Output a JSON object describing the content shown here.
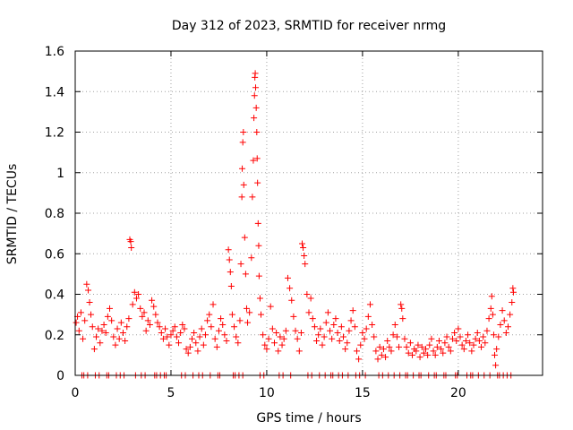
{
  "chart_data": {
    "type": "scatter",
    "title": "Day 312 of 2023, SRMTID for receiver nrmg",
    "xlabel": "GPS time / hours",
    "ylabel": "SRMTID / TECUs",
    "xlim": [
      0,
      24.4
    ],
    "ylim": [
      0,
      1.6
    ],
    "xticks": [
      0,
      5,
      10,
      15,
      20
    ],
    "xtick_labels": [
      "0",
      "5",
      "10",
      "15",
      "20"
    ],
    "yticks": [
      0,
      0.2,
      0.4,
      0.6,
      0.8,
      1.0,
      1.2,
      1.4,
      1.6
    ],
    "ytick_labels": [
      "0",
      "0.2",
      "0.4",
      "0.6",
      "0.8",
      "1",
      "1.2",
      "1.4",
      "1.6"
    ],
    "grid": true,
    "marker": "+",
    "marker_color": "#ff0000",
    "series": [
      {
        "name": "SRMTID",
        "points": [
          [
            0.05,
            0.26
          ],
          [
            0.12,
            0.29
          ],
          [
            0.2,
            0.22
          ],
          [
            0.3,
            0.31
          ],
          [
            0.4,
            0.18
          ],
          [
            0.5,
            0.27
          ],
          [
            0.6,
            0.45
          ],
          [
            0.68,
            0.42
          ],
          [
            0.75,
            0.36
          ],
          [
            0.82,
            0.3
          ],
          [
            0.9,
            0.24
          ],
          [
            1.0,
            0.13
          ],
          [
            1.1,
            0.19
          ],
          [
            1.2,
            0.23
          ],
          [
            1.3,
            0.16
          ],
          [
            1.4,
            0.22
          ],
          [
            1.5,
            0.25
          ],
          [
            1.6,
            0.21
          ],
          [
            1.7,
            0.29
          ],
          [
            1.8,
            0.33
          ],
          [
            1.9,
            0.27
          ],
          [
            2.0,
            0.19
          ],
          [
            2.1,
            0.15
          ],
          [
            2.2,
            0.23
          ],
          [
            2.3,
            0.18
          ],
          [
            2.4,
            0.26
          ],
          [
            2.5,
            0.21
          ],
          [
            2.6,
            0.17
          ],
          [
            2.7,
            0.24
          ],
          [
            2.8,
            0.28
          ],
          [
            2.85,
            0.67
          ],
          [
            2.9,
            0.66
          ],
          [
            2.93,
            0.63
          ],
          [
            3.0,
            0.35
          ],
          [
            3.1,
            0.41
          ],
          [
            3.2,
            0.38
          ],
          [
            3.3,
            0.4
          ],
          [
            3.4,
            0.33
          ],
          [
            3.5,
            0.29
          ],
          [
            3.6,
            0.31
          ],
          [
            3.7,
            0.22
          ],
          [
            3.8,
            0.27
          ],
          [
            3.9,
            0.25
          ],
          [
            4.0,
            0.37
          ],
          [
            4.1,
            0.34
          ],
          [
            4.2,
            0.3
          ],
          [
            4.3,
            0.26
          ],
          [
            4.4,
            0.24
          ],
          [
            4.5,
            0.21
          ],
          [
            4.6,
            0.18
          ],
          [
            4.7,
            0.23
          ],
          [
            4.8,
            0.19
          ],
          [
            4.9,
            0.15
          ],
          [
            5.0,
            0.2
          ],
          [
            5.1,
            0.22
          ],
          [
            5.2,
            0.24
          ],
          [
            5.3,
            0.19
          ],
          [
            5.4,
            0.16
          ],
          [
            5.5,
            0.21
          ],
          [
            5.6,
            0.25
          ],
          [
            5.7,
            0.23
          ],
          [
            5.8,
            0.13
          ],
          [
            5.9,
            0.11
          ],
          [
            6.0,
            0.14
          ],
          [
            6.1,
            0.18
          ],
          [
            6.2,
            0.21
          ],
          [
            6.3,
            0.16
          ],
          [
            6.4,
            0.12
          ],
          [
            6.5,
            0.19
          ],
          [
            6.6,
            0.23
          ],
          [
            6.7,
            0.15
          ],
          [
            6.8,
            0.2
          ],
          [
            6.9,
            0.27
          ],
          [
            7.0,
            0.3
          ],
          [
            7.1,
            0.24
          ],
          [
            7.2,
            0.35
          ],
          [
            7.3,
            0.18
          ],
          [
            7.4,
            0.14
          ],
          [
            7.5,
            0.22
          ],
          [
            7.6,
            0.28
          ],
          [
            7.7,
            0.25
          ],
          [
            7.8,
            0.2
          ],
          [
            7.9,
            0.17
          ],
          [
            8.0,
            0.62
          ],
          [
            8.05,
            0.57
          ],
          [
            8.1,
            0.51
          ],
          [
            8.15,
            0.44
          ],
          [
            8.2,
            0.3
          ],
          [
            8.3,
            0.24
          ],
          [
            8.4,
            0.19
          ],
          [
            8.5,
            0.16
          ],
          [
            8.6,
            0.27
          ],
          [
            8.65,
            0.55
          ],
          [
            8.7,
            0.88
          ],
          [
            8.72,
            1.02
          ],
          [
            8.75,
            1.15
          ],
          [
            8.78,
            1.2
          ],
          [
            8.8,
            0.94
          ],
          [
            8.85,
            0.68
          ],
          [
            8.9,
            0.5
          ],
          [
            8.95,
            0.33
          ],
          [
            9.0,
            0.26
          ],
          [
            9.1,
            0.31
          ],
          [
            9.2,
            0.58
          ],
          [
            9.25,
            0.88
          ],
          [
            9.3,
            1.06
          ],
          [
            9.33,
            1.27
          ],
          [
            9.36,
            1.38
          ],
          [
            9.38,
            1.47
          ],
          [
            9.4,
            1.49
          ],
          [
            9.42,
            1.42
          ],
          [
            9.45,
            1.32
          ],
          [
            9.48,
            1.2
          ],
          [
            9.5,
            1.07
          ],
          [
            9.52,
            0.95
          ],
          [
            9.55,
            0.75
          ],
          [
            9.58,
            0.64
          ],
          [
            9.6,
            0.49
          ],
          [
            9.65,
            0.38
          ],
          [
            9.7,
            0.3
          ],
          [
            9.8,
            0.2
          ],
          [
            9.9,
            0.15
          ],
          [
            10.0,
            0.13
          ],
          [
            10.1,
            0.18
          ],
          [
            10.2,
            0.34
          ],
          [
            10.3,
            0.23
          ],
          [
            10.4,
            0.16
          ],
          [
            10.5,
            0.21
          ],
          [
            10.6,
            0.12
          ],
          [
            10.7,
            0.19
          ],
          [
            10.8,
            0.15
          ],
          [
            10.9,
            0.18
          ],
          [
            11.0,
            0.22
          ],
          [
            11.1,
            0.48
          ],
          [
            11.2,
            0.43
          ],
          [
            11.3,
            0.37
          ],
          [
            11.4,
            0.29
          ],
          [
            11.5,
            0.22
          ],
          [
            11.6,
            0.18
          ],
          [
            11.7,
            0.12
          ],
          [
            11.8,
            0.21
          ],
          [
            11.85,
            0.65
          ],
          [
            11.9,
            0.63
          ],
          [
            11.95,
            0.59
          ],
          [
            12.0,
            0.55
          ],
          [
            12.1,
            0.4
          ],
          [
            12.2,
            0.31
          ],
          [
            12.3,
            0.38
          ],
          [
            12.4,
            0.28
          ],
          [
            12.5,
            0.24
          ],
          [
            12.6,
            0.17
          ],
          [
            12.7,
            0.2
          ],
          [
            12.8,
            0.23
          ],
          [
            12.9,
            0.15
          ],
          [
            13.0,
            0.19
          ],
          [
            13.1,
            0.26
          ],
          [
            13.2,
            0.31
          ],
          [
            13.3,
            0.22
          ],
          [
            13.4,
            0.18
          ],
          [
            13.5,
            0.25
          ],
          [
            13.6,
            0.28
          ],
          [
            13.7,
            0.21
          ],
          [
            13.8,
            0.17
          ],
          [
            13.9,
            0.24
          ],
          [
            14.0,
            0.19
          ],
          [
            14.1,
            0.13
          ],
          [
            14.2,
            0.16
          ],
          [
            14.3,
            0.22
          ],
          [
            14.4,
            0.27
          ],
          [
            14.5,
            0.32
          ],
          [
            14.6,
            0.24
          ],
          [
            14.7,
            0.12
          ],
          [
            14.8,
            0.08
          ],
          [
            14.9,
            0.15
          ],
          [
            15.0,
            0.21
          ],
          [
            15.1,
            0.18
          ],
          [
            15.2,
            0.23
          ],
          [
            15.3,
            0.29
          ],
          [
            15.4,
            0.35
          ],
          [
            15.5,
            0.25
          ],
          [
            15.6,
            0.19
          ],
          [
            15.7,
            0.12
          ],
          [
            15.8,
            0.08
          ],
          [
            15.9,
            0.14
          ],
          [
            16.0,
            0.1
          ],
          [
            16.1,
            0.13
          ],
          [
            16.2,
            0.09
          ],
          [
            16.3,
            0.17
          ],
          [
            16.4,
            0.14
          ],
          [
            16.5,
            0.12
          ],
          [
            16.6,
            0.2
          ],
          [
            16.7,
            0.25
          ],
          [
            16.8,
            0.19
          ],
          [
            16.9,
            0.14
          ],
          [
            17.0,
            0.35
          ],
          [
            17.05,
            0.33
          ],
          [
            17.1,
            0.28
          ],
          [
            17.2,
            0.18
          ],
          [
            17.3,
            0.14
          ],
          [
            17.4,
            0.11
          ],
          [
            17.5,
            0.16
          ],
          [
            17.6,
            0.1
          ],
          [
            17.7,
            0.13
          ],
          [
            17.8,
            0.12
          ],
          [
            17.9,
            0.15
          ],
          [
            18.0,
            0.09
          ],
          [
            18.1,
            0.14
          ],
          [
            18.2,
            0.11
          ],
          [
            18.3,
            0.13
          ],
          [
            18.4,
            0.1
          ],
          [
            18.5,
            0.15
          ],
          [
            18.6,
            0.18
          ],
          [
            18.7,
            0.12
          ],
          [
            18.8,
            0.1
          ],
          [
            18.9,
            0.14
          ],
          [
            19.0,
            0.17
          ],
          [
            19.1,
            0.13
          ],
          [
            19.2,
            0.11
          ],
          [
            19.3,
            0.16
          ],
          [
            19.4,
            0.19
          ],
          [
            19.5,
            0.14
          ],
          [
            19.6,
            0.12
          ],
          [
            19.7,
            0.18
          ],
          [
            19.8,
            0.21
          ],
          [
            19.9,
            0.17
          ],
          [
            20.0,
            0.23
          ],
          [
            20.1,
            0.19
          ],
          [
            20.2,
            0.15
          ],
          [
            20.3,
            0.13
          ],
          [
            20.4,
            0.17
          ],
          [
            20.5,
            0.2
          ],
          [
            20.6,
            0.16
          ],
          [
            20.7,
            0.12
          ],
          [
            20.8,
            0.15
          ],
          [
            20.9,
            0.18
          ],
          [
            21.0,
            0.21
          ],
          [
            21.1,
            0.17
          ],
          [
            21.2,
            0.14
          ],
          [
            21.3,
            0.19
          ],
          [
            21.4,
            0.16
          ],
          [
            21.5,
            0.22
          ],
          [
            21.6,
            0.28
          ],
          [
            21.7,
            0.33
          ],
          [
            21.75,
            0.39
          ],
          [
            21.8,
            0.3
          ],
          [
            21.85,
            0.2
          ],
          [
            21.9,
            0.1
          ],
          [
            21.95,
            0.05
          ],
          [
            22.0,
            0.13
          ],
          [
            22.1,
            0.19
          ],
          [
            22.2,
            0.25
          ],
          [
            22.3,
            0.32
          ],
          [
            22.4,
            0.27
          ],
          [
            22.5,
            0.21
          ],
          [
            22.6,
            0.24
          ],
          [
            22.7,
            0.3
          ],
          [
            22.8,
            0.36
          ],
          [
            22.85,
            0.43
          ],
          [
            22.88,
            0.41
          ]
        ],
        "zero_points": [
          0.35,
          0.45,
          0.65,
          1.05,
          1.25,
          1.65,
          1.75,
          2.15,
          2.35,
          2.55,
          3.15,
          3.45,
          3.65,
          4.15,
          4.25,
          4.45,
          4.65,
          4.75,
          5.55,
          5.75,
          6.15,
          6.45,
          6.65,
          7.05,
          7.45,
          7.55,
          8.25,
          8.35,
          8.55,
          8.75,
          9.65,
          9.85,
          10.65,
          10.85,
          11.25,
          12.15,
          12.35,
          12.75,
          13.05,
          13.35,
          13.45,
          13.75,
          13.95,
          14.25,
          14.65,
          14.85,
          15.15,
          15.85,
          16.05,
          16.35,
          16.65,
          16.95,
          17.25,
          17.35,
          17.65,
          17.95,
          18.05,
          18.45,
          18.75,
          18.85,
          19.25,
          19.35,
          19.85,
          19.95,
          20.45,
          20.65,
          20.75,
          21.05,
          21.35,
          21.65,
          22.05,
          22.15,
          22.35,
          22.55,
          22.75
        ]
      }
    ]
  }
}
